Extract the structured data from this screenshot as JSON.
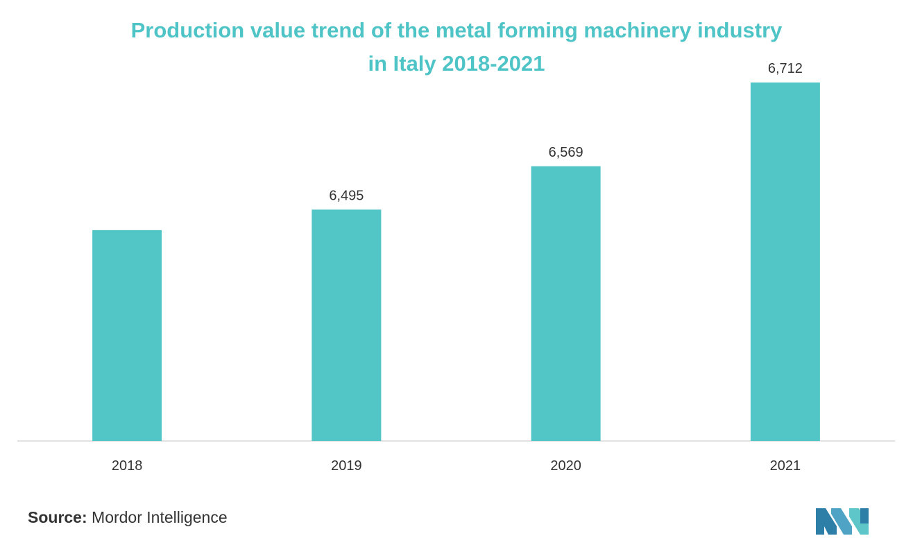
{
  "chart_data": {
    "type": "bar",
    "title_lines": [
      "Production value trend of the metal forming machinery industry",
      "in Italy 2018-2021"
    ],
    "categories": [
      "2018",
      "2019",
      "2020",
      "2021"
    ],
    "values": [
      6460,
      6495,
      6569,
      6712
    ],
    "data_labels": [
      "",
      "6,495",
      "6,569",
      "6,712"
    ],
    "ylim": [
      6100,
      6712
    ],
    "grid": false,
    "y_axis_shown": false,
    "bar_color": "#52c5c7",
    "axis_color": "#d9d9d9"
  },
  "footer": {
    "source_label": "Source:",
    "source_name": "Mordor Intelligence"
  },
  "logo": {
    "icon": "mordor-intelligence-logo-icon",
    "color": "#4fa3c4"
  }
}
